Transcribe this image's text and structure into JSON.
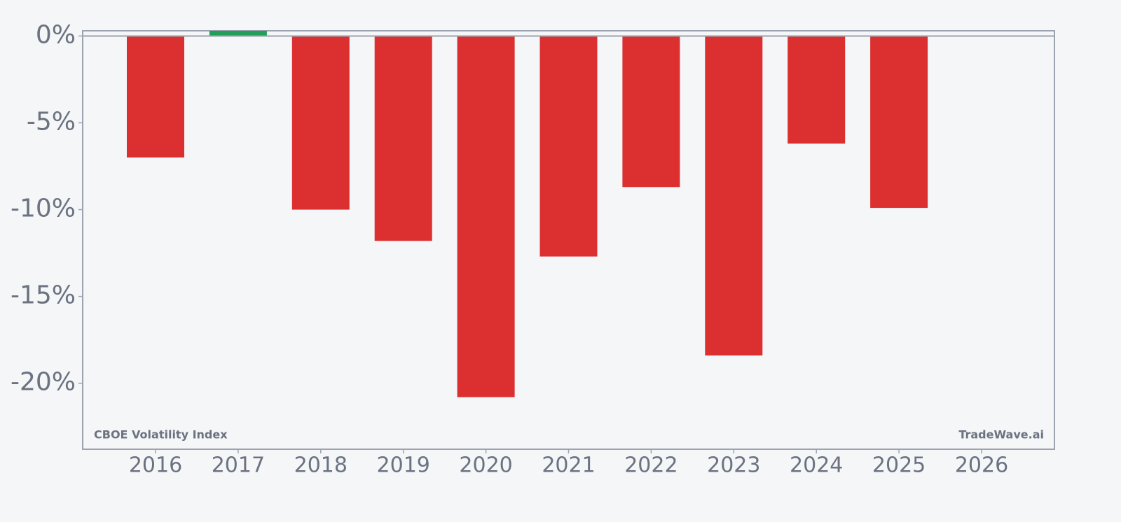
{
  "chart_data": {
    "type": "bar",
    "categories": [
      "2016",
      "2017",
      "2018",
      "2019",
      "2020",
      "2021",
      "2022",
      "2023",
      "2024",
      "2025",
      "2026"
    ],
    "values": [
      -7.0,
      0.3,
      -10.0,
      -11.8,
      -20.8,
      -12.7,
      -8.7,
      -18.4,
      -6.2,
      -9.9,
      null
    ],
    "color_positive": "#22a05a",
    "color_negative": "#dc3030",
    "ylim": [
      -23.8,
      0.3
    ],
    "yticks": [
      {
        "value": 0,
        "label": "0%"
      },
      {
        "value": -5,
        "label": "-5%"
      },
      {
        "value": -10,
        "label": "-10%"
      },
      {
        "value": -15,
        "label": "-15%"
      },
      {
        "value": -20,
        "label": "-20%"
      }
    ],
    "annotations": [
      "CBOE Volatility Index",
      "TradeWave.ai"
    ]
  }
}
